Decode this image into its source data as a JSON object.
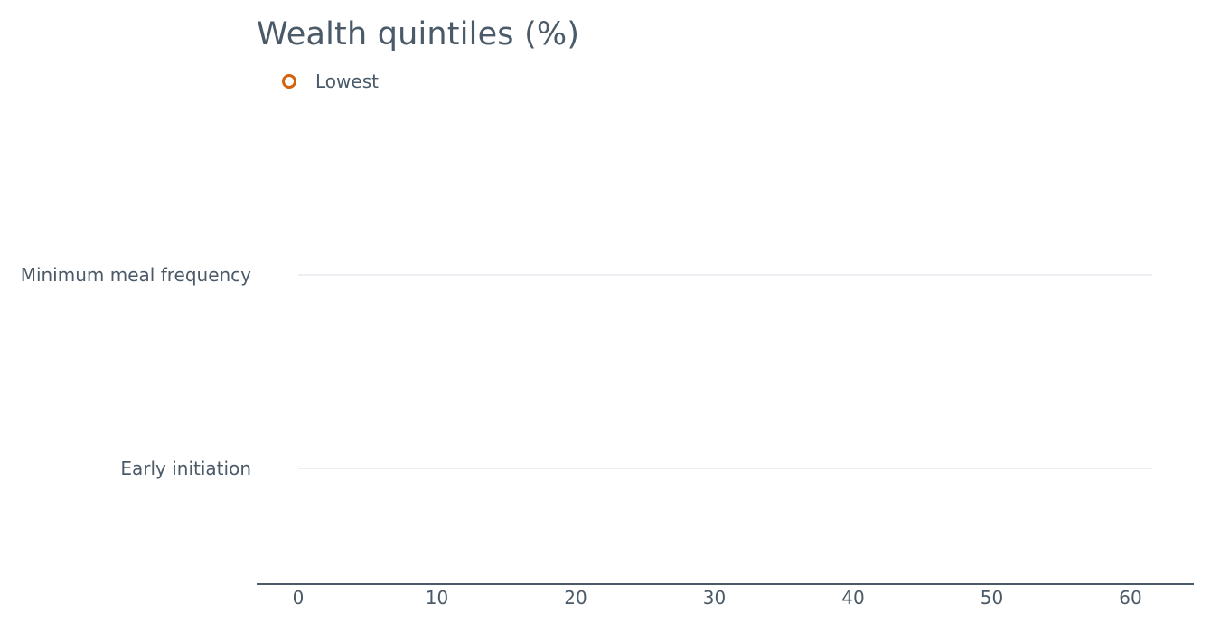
{
  "chart_data": {
    "type": "dot",
    "title": "Wealth quintiles (%)",
    "categories": [
      "Minimum meal frequency",
      "Early initiation"
    ],
    "series": [
      {
        "name": "Lowest",
        "values": [
          null,
          null
        ],
        "color": "#d4620c",
        "marker": "hollow-circle"
      }
    ],
    "x_ticks": [
      "0",
      "10",
      "20",
      "30",
      "40",
      "50",
      "60"
    ],
    "xlim": [
      0,
      60
    ],
    "xlabel": "",
    "ylabel": "",
    "grid": "horizontal",
    "legend_position": "top-left",
    "colors": {
      "text": "#4a5a68",
      "axis": "#4a5a68",
      "grid": "#d8dce6",
      "accent": "#d4620c"
    }
  }
}
